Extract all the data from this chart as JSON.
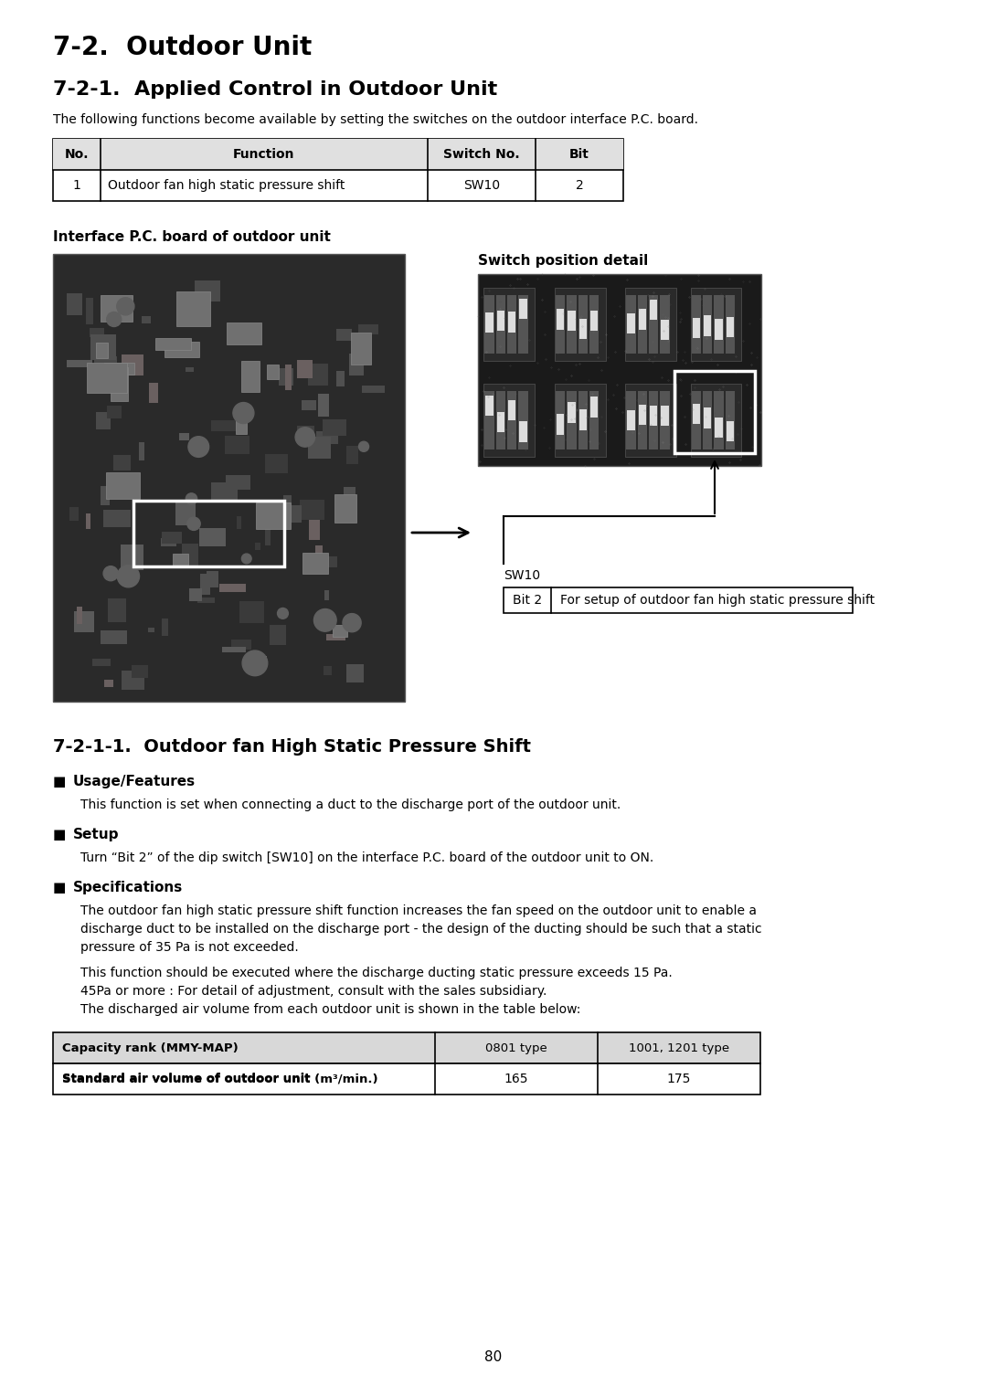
{
  "page_title": "7-2.  Outdoor Unit",
  "section_title": "7-2-1.  Applied Control in Outdoor Unit",
  "intro_text": "The following functions become available by setting the switches on the outdoor interface P.C. board.",
  "table1_headers": [
    "No.",
    "Function",
    "Switch No.",
    "Bit"
  ],
  "table1_rows": [
    [
      "1",
      "Outdoor fan high static pressure shift",
      "SW10",
      "2"
    ]
  ],
  "pcboard_label": "Interface P.C. board of outdoor unit",
  "switch_detail_label": "Switch position detail",
  "sw10_label": "SW10",
  "bit2_label": "Bit 2",
  "bit2_desc": "For setup of outdoor fan high static pressure shift",
  "section2_title": "7-2-1-1.  Outdoor fan High Static Pressure Shift",
  "bullet_labels": [
    "Usage/Features",
    "Setup",
    "Specifications"
  ],
  "usage_text": "This function is set when connecting a duct to the discharge port of the outdoor unit.",
  "setup_text": "Turn “Bit 2” of the dip switch [SW10] on the interface P.C. board of the outdoor unit to ON.",
  "spec_text1_lines": [
    "The outdoor fan high static pressure shift function increases the fan speed on the outdoor unit to enable a",
    "discharge duct to be installed on the discharge port - the design of the ducting should be such that a static",
    "pressure of 35 Pa is not exceeded."
  ],
  "spec_text2_lines": [
    "This function should be executed where the discharge ducting static pressure exceeds 15 Pa.",
    "45Pa or more : For detail of adjustment, consult with the sales subsidiary.",
    "The discharged air volume from each outdoor unit is shown in the table below:"
  ],
  "table2_headers": [
    "Capacity rank (MMY-MAP)",
    "0801 type",
    "1001, 1201 type"
  ],
  "table2_row_label": "Standard air volume of outdoor unit",
  "table2_row_unit": "(m³/min.)",
  "table2_values": [
    "165",
    "175"
  ],
  "page_number": "80",
  "bg_color": "#ffffff",
  "text_color": "#000000"
}
